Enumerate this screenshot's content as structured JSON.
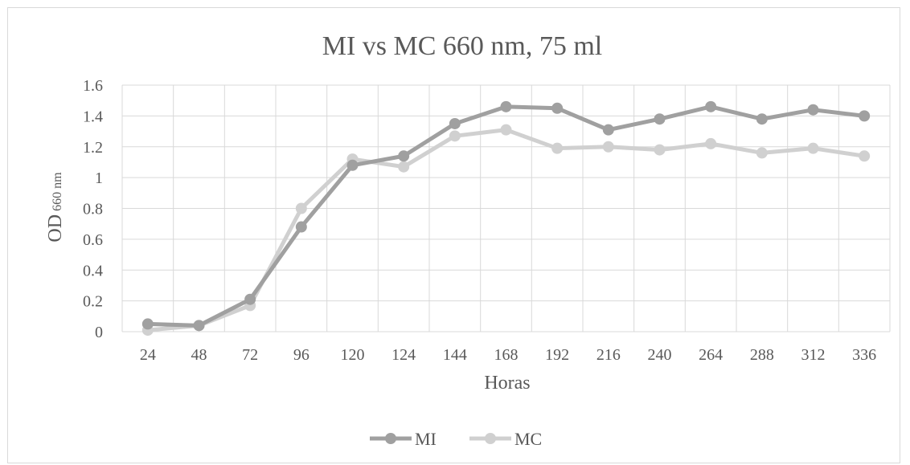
{
  "chart_data": {
    "type": "line",
    "title": "MI vs MC 660 nm, 75 ml",
    "xlabel": "Horas",
    "ylabel": "OD",
    "ylabel_sub": "660 nm",
    "categories": [
      "24",
      "48",
      "72",
      "96",
      "120",
      "124",
      "144",
      "168",
      "192",
      "216",
      "240",
      "264",
      "288",
      "312",
      "336"
    ],
    "ylim": [
      0,
      1.6
    ],
    "yticks": [
      "0",
      "0.2",
      "0.4",
      "0.6",
      "0.8",
      "1",
      "1.2",
      "1.4",
      "1.6"
    ],
    "grid": true,
    "legend": "bottom",
    "series": [
      {
        "name": "MI",
        "color": "#a0a0a0",
        "values": [
          0.05,
          0.04,
          0.21,
          0.68,
          1.08,
          1.14,
          1.35,
          1.46,
          1.45,
          1.31,
          1.38,
          1.46,
          1.38,
          1.44,
          1.4
        ]
      },
      {
        "name": "MC",
        "color": "#d0d0d0",
        "values": [
          0.01,
          0.04,
          0.17,
          0.8,
          1.12,
          1.07,
          1.27,
          1.31,
          1.19,
          1.2,
          1.18,
          1.22,
          1.16,
          1.19,
          1.14
        ]
      }
    ]
  }
}
